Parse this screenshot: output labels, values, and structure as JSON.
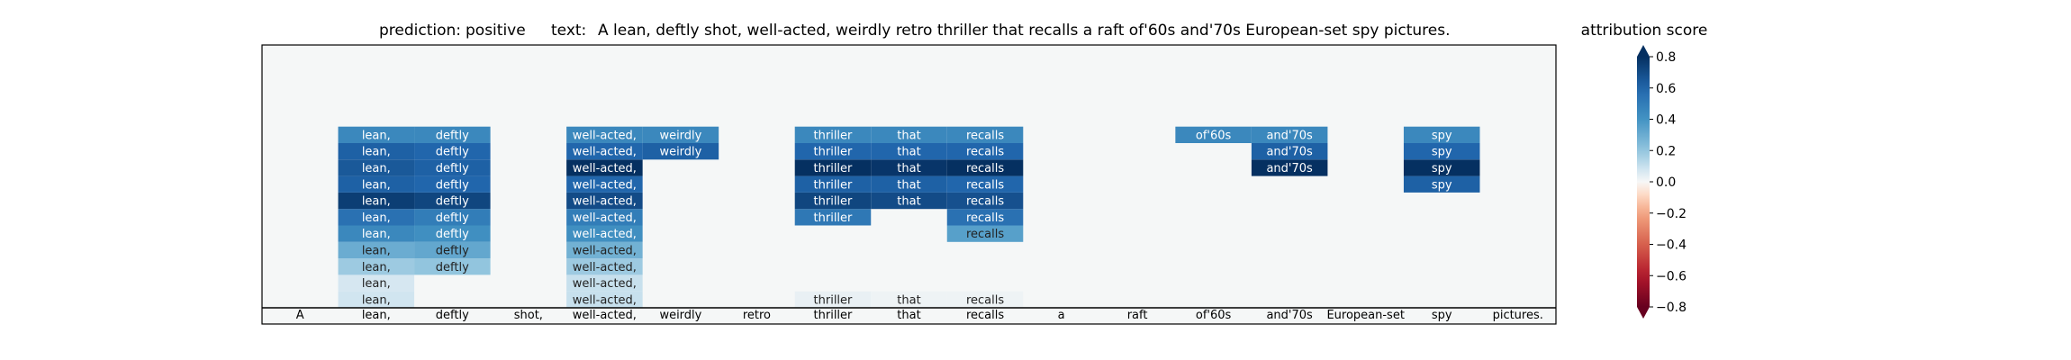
{
  "header": {
    "prediction_label": "prediction:",
    "prediction_value": "positive",
    "text_label": "text:",
    "text_value": "A lean, deftly shot, well-acted, weirdly retro thriller that recalls a raft of'60s and'70s European-set spy pictures."
  },
  "colorbar": {
    "title": "attribution score",
    "ticks": [
      "0.8",
      "0.6",
      "0.4",
      "0.2",
      "0.0",
      "−0.2",
      "−0.4",
      "−0.6",
      "−0.8"
    ],
    "tick_values": [
      0.8,
      0.6,
      0.4,
      0.2,
      0.0,
      -0.2,
      -0.4,
      -0.6,
      -0.8
    ],
    "range": [
      -0.8,
      0.8
    ],
    "colormap": "RdBu",
    "extends": "both"
  },
  "colors": {
    "plot_background": "#f5f7f7",
    "positive_max": "#08306b",
    "neutral": "#f7f7f7",
    "negative_max": "#67001f"
  },
  "chart_data": {
    "type": "heatmap",
    "tokens": [
      "A",
      "lean,",
      "deftly",
      "shot,",
      "well-acted,",
      "weirdly",
      "retro",
      "thriller",
      "that",
      "recalls",
      "a",
      "raft",
      "of'60s",
      "and'70s",
      "European-set",
      "spy",
      "pictures."
    ],
    "rows_description_free": true,
    "layers": [
      [
        0.0,
        0.08,
        0.0,
        0.0,
        0.1,
        0.0,
        0.0,
        0.03,
        0.02,
        0.02,
        0.0,
        0.0,
        0.0,
        0.0,
        0.0,
        0.0,
        0.0
      ],
      [
        0.0,
        0.07,
        0.0,
        0.0,
        0.1,
        0.0,
        0.0,
        0.0,
        0.0,
        0.0,
        0.0,
        0.0,
        0.0,
        0.0,
        0.0,
        0.0,
        0.0
      ],
      [
        0.0,
        0.18,
        0.2,
        0.0,
        0.18,
        0.0,
        0.0,
        0.0,
        0.0,
        0.0,
        0.0,
        0.0,
        0.0,
        0.0,
        0.0,
        0.0,
        0.0
      ],
      [
        0.0,
        0.3,
        0.32,
        0.0,
        0.28,
        0.0,
        0.0,
        0.0,
        0.0,
        0.0,
        0.0,
        0.0,
        0.0,
        0.0,
        0.0,
        0.0,
        0.0
      ],
      [
        0.0,
        0.45,
        0.42,
        0.0,
        0.42,
        0.0,
        0.0,
        0.0,
        0.0,
        0.35,
        0.0,
        0.0,
        0.0,
        0.0,
        0.0,
        0.0,
        0.0
      ],
      [
        0.0,
        0.55,
        0.5,
        0.0,
        0.5,
        0.0,
        0.0,
        0.52,
        0.0,
        0.55,
        0.0,
        0.0,
        0.0,
        0.0,
        0.0,
        0.0,
        0.0
      ],
      [
        0.0,
        0.75,
        0.72,
        0.0,
        0.7,
        0.0,
        0.0,
        0.72,
        0.7,
        0.68,
        0.0,
        0.0,
        0.0,
        0.0,
        0.0,
        0.0,
        0.0
      ],
      [
        0.0,
        0.62,
        0.6,
        0.0,
        0.6,
        0.0,
        0.0,
        0.62,
        0.62,
        0.6,
        0.0,
        0.0,
        0.0,
        0.0,
        0.0,
        0.62,
        0.0
      ],
      [
        0.0,
        0.65,
        0.62,
        0.0,
        0.8,
        0.0,
        0.0,
        0.8,
        0.78,
        0.82,
        0.0,
        0.0,
        0.0,
        0.82,
        0.0,
        0.82,
        0.0
      ],
      [
        0.0,
        0.62,
        0.6,
        0.0,
        0.6,
        0.62,
        0.0,
        0.6,
        0.6,
        0.6,
        0.0,
        0.0,
        0.0,
        0.62,
        0.0,
        0.6,
        0.0
      ],
      [
        0.0,
        0.45,
        0.45,
        0.0,
        0.45,
        0.45,
        0.0,
        0.45,
        0.45,
        0.45,
        0.0,
        0.0,
        0.45,
        0.45,
        0.0,
        0.45,
        0.0
      ]
    ]
  }
}
